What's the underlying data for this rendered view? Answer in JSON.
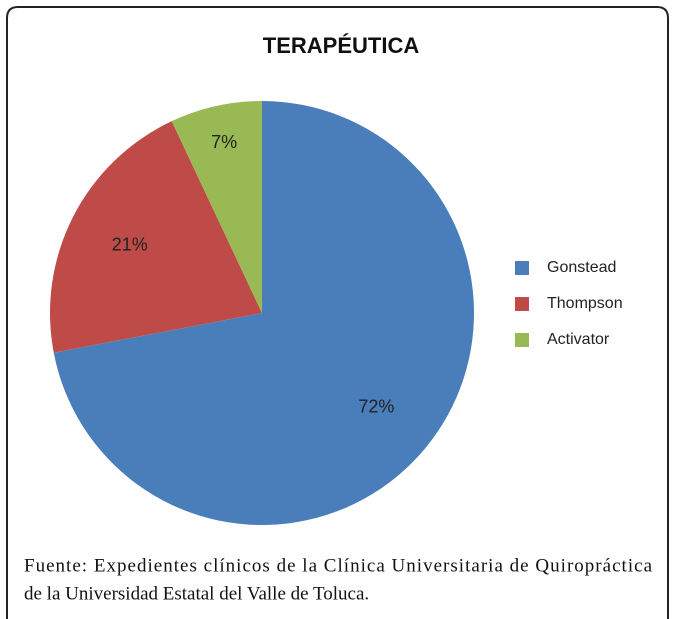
{
  "chart_data": {
    "type": "pie",
    "title": "TERAPÉUTICA",
    "categories": [
      "Gonstead",
      "Thompson",
      "Activator"
    ],
    "values": [
      72,
      21,
      7
    ],
    "value_labels": [
      "72%",
      "21%",
      "7%"
    ],
    "colors": [
      "#4a7ebb",
      "#be4b48",
      "#98b954"
    ],
    "legend": "right",
    "source": [
      "Fuente: Expedientes clínicos de la Clínica Universitaria de Quiropráctica",
      "de la Universidad Estatal del Valle de Toluca."
    ]
  }
}
